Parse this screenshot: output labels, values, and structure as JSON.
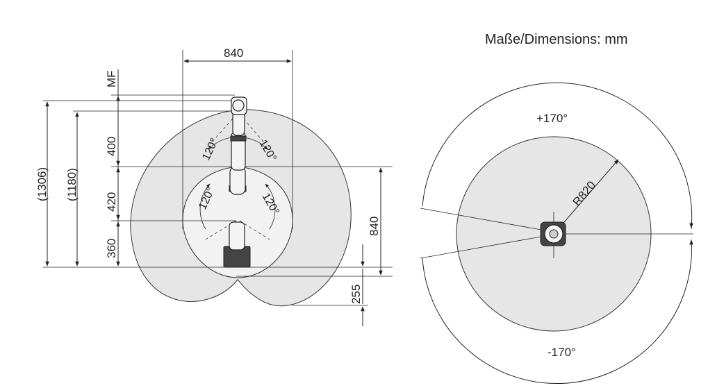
{
  "header": {
    "units_label": "Maße/Dimensions: mm"
  },
  "side_view": {
    "reach_width": "840",
    "mf_label": "MF",
    "height_outer": "(1306)",
    "height_inner": "(1180)",
    "segment_top": "400",
    "segment_mid": "420",
    "segment_base": "360",
    "reach_right": "840",
    "below_base": "255",
    "angle_upper_left": "120°",
    "angle_upper_right": "120°",
    "angle_lower_left": "120°",
    "angle_lower_right": "120°"
  },
  "top_view": {
    "radius_label": "R820",
    "angle_positive": "+170°",
    "angle_negative": "-170°"
  }
}
